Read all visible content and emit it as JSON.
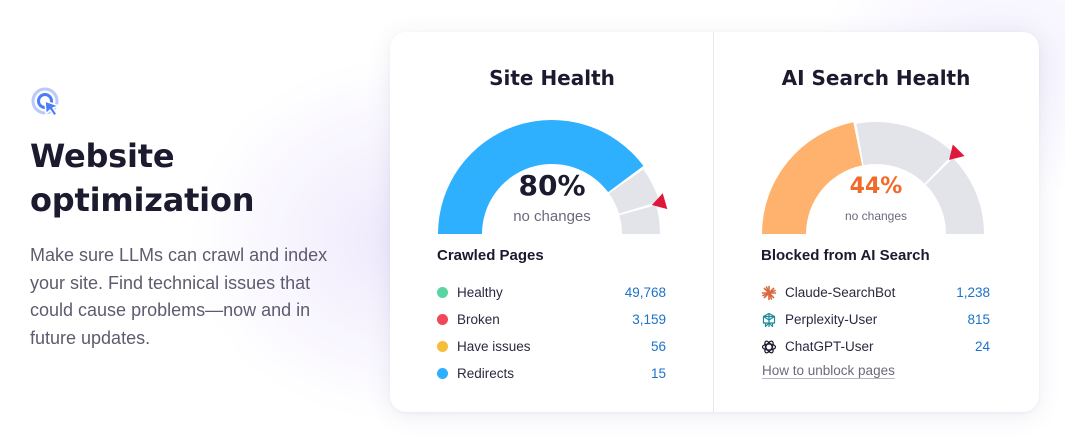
{
  "intro": {
    "title_line1": "Website",
    "title_line2": "optimization",
    "description": "Make sure LLMs can crawl and index your site. Find technical issues that could cause problems—now and in future updates."
  },
  "site_health": {
    "title": "Site Health",
    "value_text": "80%",
    "value_fraction": 0.8,
    "subtitle": "no changes",
    "gauge_colors": {
      "filled": "#2eb0ff",
      "empty": "#e3e3ea",
      "marker": "#e0173c"
    },
    "section_title": "Crawled Pages",
    "rows": [
      {
        "label": "Healthy",
        "value": "49,768",
        "color": "#59d4a3"
      },
      {
        "label": "Broken",
        "value": "3,159",
        "color": "#f0485a"
      },
      {
        "label": "Have issues",
        "value": "56",
        "color": "#f7bd3a"
      },
      {
        "label": "Redirects",
        "value": "15",
        "color": "#2eb0ff"
      }
    ]
  },
  "ai_health": {
    "title": "AI Search Health",
    "value_text": "44%",
    "value_fraction": 0.44,
    "subtitle": "no changes",
    "gauge_colors": {
      "filled": "#ffb26e",
      "empty": "#e3e3ea",
      "marker": "#e0173c"
    },
    "section_title": "Blocked from AI Search",
    "rows": [
      {
        "label": "Claude-SearchBot",
        "value": "1,238",
        "icon": "claude-icon"
      },
      {
        "label": "Perplexity-User",
        "value": "815",
        "icon": "perplexity-icon"
      },
      {
        "label": "ChatGPT-User",
        "value": "24",
        "icon": "chatgpt-icon"
      }
    ],
    "link_label": "How to unblock pages"
  },
  "colors": {
    "accent_blue": "#1d72c9",
    "icon_blue": "#4d7cf7"
  }
}
